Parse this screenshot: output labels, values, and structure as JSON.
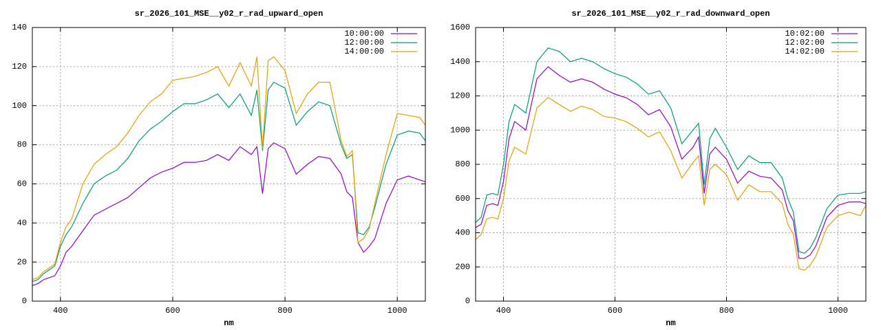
{
  "chart_data": [
    {
      "type": "line",
      "title": "sr_2026_101_MSE__y02_r_rad_upward_open",
      "xlabel": "nm",
      "x": [
        350,
        360,
        370,
        380,
        390,
        400,
        410,
        420,
        440,
        460,
        480,
        500,
        520,
        540,
        560,
        580,
        600,
        620,
        640,
        660,
        680,
        700,
        720,
        740,
        750,
        760,
        770,
        780,
        800,
        820,
        840,
        860,
        880,
        900,
        910,
        920,
        930,
        940,
        950,
        960,
        980,
        1000,
        1020,
        1040,
        1050
      ],
      "xlim": [
        350,
        1050
      ],
      "xticks": [
        400,
        600,
        800,
        1000
      ],
      "ylim": [
        0,
        140
      ],
      "yticks": [
        0,
        20,
        40,
        60,
        80,
        100,
        120,
        140
      ],
      "grid": true,
      "legend": "top-right",
      "series": [
        {
          "name": "10:00:00",
          "color": "#9400d3",
          "values": [
            8,
            9,
            11,
            12,
            13,
            18,
            25,
            28,
            36,
            44,
            47,
            50,
            53,
            58,
            63,
            66,
            68,
            71,
            71,
            72,
            75,
            72,
            79,
            75,
            79,
            55,
            78,
            81,
            78,
            65,
            70,
            74,
            73,
            65,
            56,
            53,
            30,
            25,
            28,
            32,
            50,
            62,
            64,
            62,
            61
          ]
        },
        {
          "name": "12:00:00",
          "color": "#009e73",
          "values": [
            10,
            11,
            14,
            16,
            18,
            28,
            34,
            38,
            50,
            60,
            64,
            67,
            73,
            82,
            88,
            92,
            97,
            101,
            101,
            103,
            106,
            99,
            106,
            95,
            108,
            77,
            108,
            112,
            109,
            90,
            97,
            102,
            100,
            80,
            73,
            75,
            35,
            34,
            38,
            48,
            70,
            85,
            87,
            86,
            82
          ]
        },
        {
          "name": "14:00:00",
          "color": "#e69f00",
          "values": [
            11,
            12,
            15,
            17,
            19,
            30,
            38,
            42,
            60,
            70,
            75,
            79,
            86,
            95,
            102,
            106,
            113,
            114,
            115,
            117,
            120,
            110,
            122,
            110,
            125,
            78,
            123,
            125,
            118,
            96,
            106,
            112,
            112,
            82,
            74,
            77,
            30,
            32,
            37,
            50,
            75,
            96,
            95,
            94,
            90
          ]
        }
      ]
    },
    {
      "type": "line",
      "title": "sr_2026_101_MSE__y02_r_rad_downward_open",
      "xlabel": "nm",
      "x": [
        350,
        360,
        370,
        380,
        390,
        400,
        410,
        420,
        440,
        460,
        480,
        500,
        520,
        540,
        560,
        580,
        600,
        620,
        640,
        660,
        680,
        700,
        720,
        740,
        750,
        760,
        770,
        780,
        800,
        820,
        840,
        860,
        880,
        900,
        910,
        920,
        930,
        940,
        950,
        960,
        980,
        1000,
        1020,
        1040,
        1050
      ],
      "xlim": [
        350,
        1050
      ],
      "xticks": [
        400,
        600,
        800,
        1000
      ],
      "ylim": [
        0,
        1600
      ],
      "yticks": [
        0,
        200,
        400,
        600,
        800,
        1000,
        1200,
        1400,
        1600
      ],
      "grid": true,
      "legend": "top-right",
      "series": [
        {
          "name": "10:02:00",
          "color": "#9400d3",
          "values": [
            430,
            450,
            560,
            570,
            560,
            700,
            950,
            1050,
            1000,
            1300,
            1370,
            1320,
            1280,
            1300,
            1280,
            1240,
            1210,
            1190,
            1150,
            1090,
            1120,
            1020,
            830,
            900,
            960,
            630,
            860,
            900,
            830,
            690,
            760,
            730,
            720,
            650,
            530,
            470,
            250,
            250,
            270,
            320,
            490,
            560,
            580,
            580,
            570
          ]
        },
        {
          "name": "12:02:00",
          "color": "#009e73",
          "values": [
            460,
            490,
            620,
            630,
            620,
            800,
            1050,
            1150,
            1100,
            1400,
            1480,
            1460,
            1400,
            1420,
            1400,
            1360,
            1330,
            1310,
            1270,
            1210,
            1230,
            1130,
            920,
            1000,
            1040,
            680,
            950,
            1010,
            900,
            770,
            850,
            810,
            810,
            720,
            600,
            520,
            290,
            280,
            310,
            370,
            540,
            620,
            630,
            630,
            640
          ]
        },
        {
          "name": "14:02:00",
          "color": "#e69f00",
          "values": [
            360,
            390,
            480,
            490,
            480,
            600,
            820,
            900,
            860,
            1130,
            1190,
            1150,
            1110,
            1140,
            1120,
            1080,
            1070,
            1050,
            1010,
            960,
            990,
            880,
            720,
            810,
            850,
            560,
            770,
            800,
            740,
            590,
            680,
            640,
            640,
            570,
            450,
            390,
            190,
            180,
            210,
            260,
            430,
            500,
            520,
            500,
            560
          ]
        }
      ]
    }
  ]
}
